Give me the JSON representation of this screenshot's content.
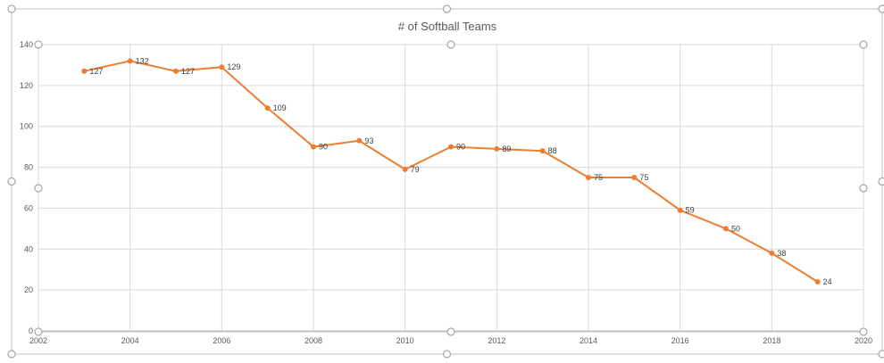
{
  "chart_data": {
    "type": "line",
    "title": "# of Softball Teams",
    "xlabel": "",
    "ylabel": "",
    "xlim": [
      2002,
      2020
    ],
    "ylim": [
      0,
      140
    ],
    "x_ticks": [
      2002,
      2004,
      2006,
      2008,
      2010,
      2012,
      2014,
      2016,
      2018,
      2020
    ],
    "y_ticks": [
      0,
      20,
      40,
      60,
      80,
      100,
      120,
      140
    ],
    "grid": true,
    "legend": "none",
    "series": [
      {
        "color": "#ed7d31",
        "x": [
          2003,
          2004,
          2005,
          2006,
          2007,
          2008,
          2009,
          2010,
          2011,
          2012,
          2013,
          2014,
          2015,
          2016,
          2017,
          2018,
          2019
        ],
        "values": [
          127,
          132,
          127,
          129,
          109,
          90,
          93,
          79,
          90,
          89,
          88,
          75,
          75,
          59,
          50,
          38,
          24
        ]
      }
    ]
  }
}
